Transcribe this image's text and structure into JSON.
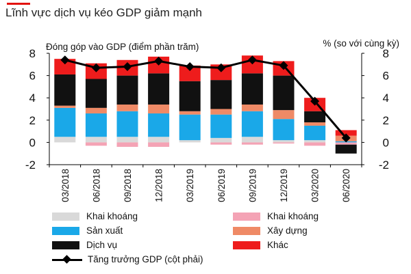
{
  "header": {
    "title": "Lĩnh vực dịch vụ kéo GDP giảm mạnh"
  },
  "chart_data": {
    "type": "bar",
    "stacked": true,
    "xlabel": "",
    "ylabel_left": "Đóng góp vào GDP (điểm phần trăm)",
    "ylabel_right": "% (so với cùng kỳ)",
    "ylim": [
      -2,
      8
    ],
    "yticks": [
      -2,
      0,
      2,
      4,
      6,
      8
    ],
    "grid": false,
    "legend_position": "bottom",
    "categories": [
      "03/2018",
      "06/2018",
      "09/2018",
      "12/2018",
      "03/2019",
      "06/2019",
      "09/2019",
      "12/2019",
      "03/2020",
      "06/2020"
    ],
    "series": [
      {
        "name": "Khai khoáng",
        "key": "mining_pos",
        "color": "#d9d9d9",
        "values": [
          0.5,
          0.5,
          0.5,
          0.5,
          0.2,
          0.4,
          0.5,
          0.2,
          0.2,
          0.0
        ]
      },
      {
        "name": "Sản xuất",
        "key": "manufacturing",
        "color": "#1aa8e8",
        "values": [
          2.6,
          2.1,
          2.3,
          2.1,
          2.3,
          2.1,
          2.3,
          1.9,
          1.3,
          0.1
        ]
      },
      {
        "name": "Khai khoáng",
        "key": "mining_neg",
        "color": "#f4a3b5",
        "values": [
          0.0,
          -0.3,
          -0.4,
          -0.4,
          0.0,
          -0.2,
          -0.2,
          -0.1,
          -0.3,
          -0.2
        ]
      },
      {
        "name": "Xây dựng",
        "key": "construction",
        "color": "#ef8a66",
        "values": [
          0.2,
          0.5,
          0.6,
          0.8,
          0.3,
          0.5,
          0.6,
          0.8,
          0.3,
          0.5
        ]
      },
      {
        "name": "Dịch vụ",
        "key": "services",
        "color": "#111111",
        "values": [
          2.8,
          2.6,
          2.6,
          2.8,
          2.7,
          2.6,
          2.8,
          3.1,
          1.0,
          -0.8
        ]
      },
      {
        "name": "Khác",
        "key": "other",
        "color": "#ee1c1c",
        "values": [
          1.4,
          1.4,
          1.4,
          1.5,
          1.4,
          1.4,
          1.6,
          1.3,
          1.2,
          0.5
        ]
      }
    ],
    "line": {
      "name": "Tăng trưởng GDP (cột phải)",
      "axis": "right",
      "values": [
        7.4,
        6.7,
        6.8,
        7.3,
        6.8,
        6.7,
        7.4,
        6.9,
        3.7,
        0.4
      ]
    }
  },
  "legend": {
    "items": [
      {
        "label": "Khai khoáng",
        "color": "#d9d9d9",
        "kind": "box"
      },
      {
        "label": "Khai khoáng",
        "color": "#f4a3b5",
        "kind": "box"
      },
      {
        "label": "Sản xuất",
        "color": "#1aa8e8",
        "kind": "box"
      },
      {
        "label": "Xây dựng",
        "color": "#ef8a66",
        "kind": "box"
      },
      {
        "label": "Dịch vụ",
        "color": "#111111",
        "kind": "box"
      },
      {
        "label": "Khác",
        "color": "#ee1c1c",
        "kind": "box"
      },
      {
        "label": "Tăng trưởng GDP (cột phải)",
        "color": "#000000",
        "kind": "line"
      }
    ]
  }
}
